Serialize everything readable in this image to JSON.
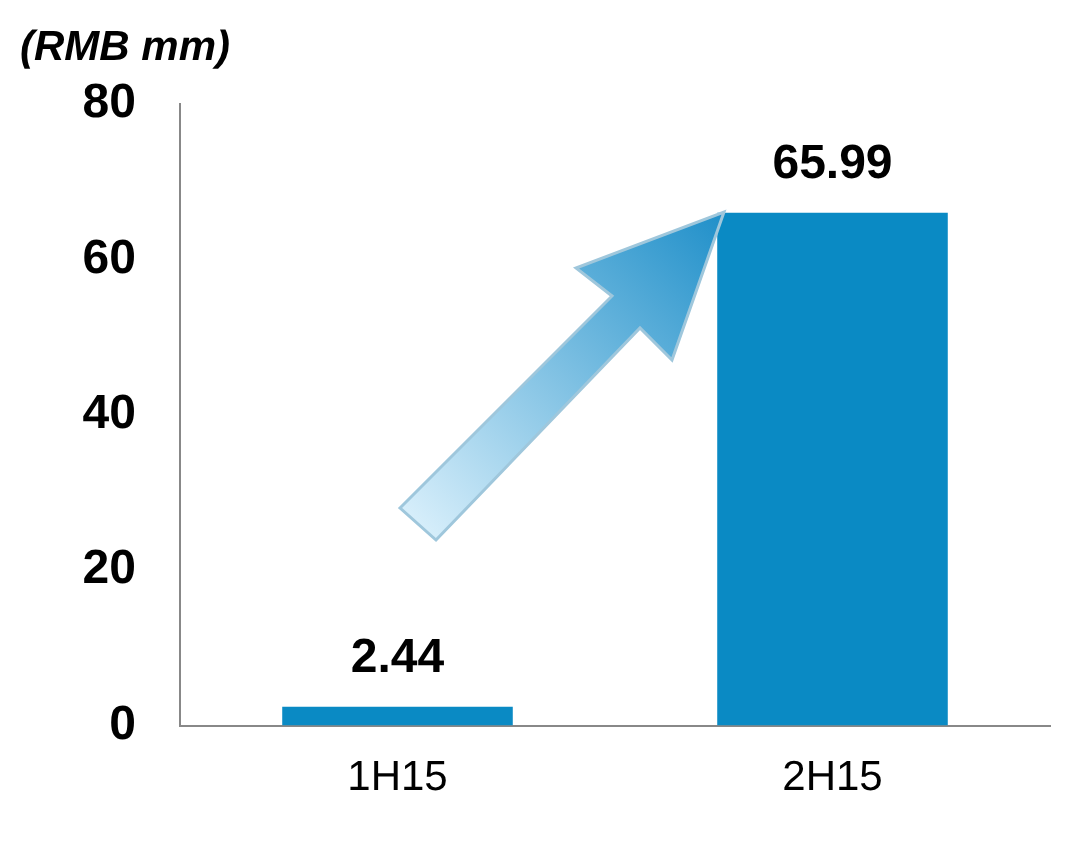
{
  "chart_data": {
    "type": "bar",
    "ylabel": "(RMB mm)",
    "categories": [
      "1H15",
      "2H15"
    ],
    "values": [
      2.44,
      65.99
    ],
    "color": "#0a8ac4",
    "ylim": [
      0,
      80
    ],
    "yticks": [
      0,
      20,
      40,
      60,
      80
    ],
    "grid": false,
    "legend": false,
    "data_labels": true
  }
}
